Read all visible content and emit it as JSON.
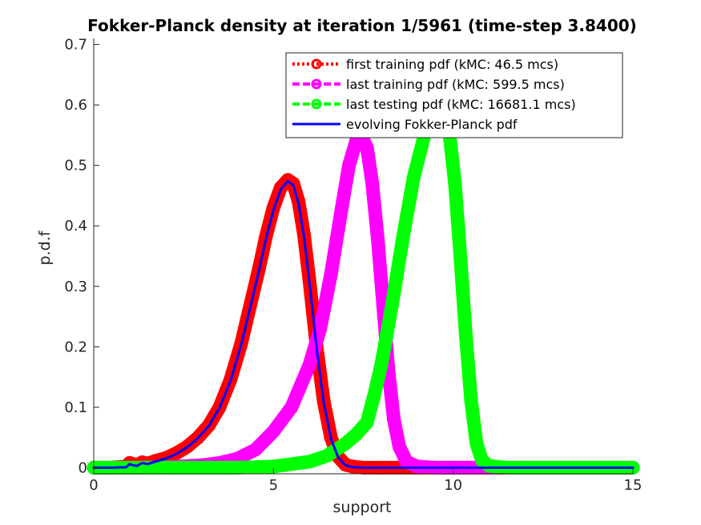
{
  "chart_data": {
    "type": "line",
    "title": "Fokker-Planck density at iteration 1/5961 (time-step 3.8400)",
    "xlabel": "support",
    "ylabel": "p.d.f",
    "xlim": [
      0,
      15
    ],
    "ylim": [
      -0.01,
      0.71
    ],
    "xticks": [
      0,
      5,
      10,
      15
    ],
    "yticks": [
      0,
      0.1,
      0.2,
      0.3,
      0.4,
      0.5,
      0.6,
      0.7
    ],
    "xtick_labels": [
      "0",
      "5",
      "10",
      "15"
    ],
    "ytick_labels": [
      "0",
      "0.1",
      "0.2",
      "0.3",
      "0.4",
      "0.5",
      "0.6",
      "0.7"
    ],
    "grid": false,
    "legend_position": "top-right",
    "series": [
      {
        "name": "first training pdf (kMC: 46.5 mcs)",
        "color": "#ff0000",
        "style": "marker-band",
        "x": [
          0,
          0.5,
          0.9,
          1.0,
          1.1,
          1.2,
          1.35,
          1.5,
          1.7,
          2.0,
          2.3,
          2.6,
          2.9,
          3.2,
          3.5,
          3.8,
          4.1,
          4.4,
          4.6,
          4.8,
          5.0,
          5.2,
          5.4,
          5.55,
          5.7,
          5.85,
          6.0,
          6.2,
          6.4,
          6.6,
          6.8,
          7.0,
          7.2,
          7.5,
          8.0,
          9.0,
          10.0,
          12.0,
          15.0
        ],
        "y": [
          0,
          0,
          0.002,
          0.008,
          0.006,
          0.004,
          0.009,
          0.007,
          0.011,
          0.016,
          0.024,
          0.035,
          0.05,
          0.07,
          0.1,
          0.145,
          0.205,
          0.28,
          0.33,
          0.385,
          0.43,
          0.463,
          0.476,
          0.47,
          0.44,
          0.385,
          0.31,
          0.2,
          0.11,
          0.05,
          0.018,
          0.005,
          0.002,
          0,
          0,
          0,
          0,
          0,
          0
        ]
      },
      {
        "name": "last training pdf (kMC: 599.5 mcs)",
        "color": "#ff00ff",
        "style": "marker-band",
        "x": [
          0,
          1,
          2,
          3,
          3.5,
          4,
          4.5,
          5,
          5.5,
          6,
          6.3,
          6.6,
          6.9,
          7.1,
          7.3,
          7.45,
          7.6,
          7.75,
          7.9,
          8.05,
          8.2,
          8.35,
          8.5,
          8.7,
          9.0,
          9.5,
          10,
          12,
          15
        ],
        "y": [
          0,
          0,
          0.001,
          0.004,
          0.008,
          0.015,
          0.03,
          0.06,
          0.1,
          0.17,
          0.23,
          0.32,
          0.43,
          0.5,
          0.54,
          0.548,
          0.53,
          0.47,
          0.38,
          0.27,
          0.16,
          0.08,
          0.035,
          0.01,
          0.002,
          0,
          0,
          0,
          0
        ]
      },
      {
        "name": "last testing pdf (kMC: 16681.1 mcs)",
        "color": "#00ff00",
        "style": "marker-band",
        "x": [
          0,
          2,
          4,
          5,
          6,
          6.5,
          7,
          7.3,
          7.6,
          7.8,
          8.0,
          8.3,
          8.6,
          8.9,
          9.2,
          9.4,
          9.6,
          9.75,
          9.9,
          10.05,
          10.2,
          10.35,
          10.5,
          10.65,
          10.8,
          11.0,
          11.5,
          13,
          15
        ],
        "y": [
          0,
          0,
          0,
          0.002,
          0.01,
          0.02,
          0.04,
          0.055,
          0.075,
          0.12,
          0.17,
          0.27,
          0.38,
          0.48,
          0.55,
          0.58,
          0.585,
          0.58,
          0.55,
          0.47,
          0.35,
          0.22,
          0.11,
          0.04,
          0.012,
          0.003,
          0,
          0,
          0
        ]
      },
      {
        "name": "evolving Fokker-Planck pdf",
        "color": "#0000ff",
        "style": "line",
        "x": [
          0,
          0.5,
          0.9,
          1.0,
          1.1,
          1.2,
          1.35,
          1.5,
          1.7,
          2.0,
          2.3,
          2.6,
          2.9,
          3.2,
          3.5,
          3.8,
          4.1,
          4.4,
          4.6,
          4.8,
          5.0,
          5.2,
          5.4,
          5.55,
          5.7,
          5.85,
          6.0,
          6.2,
          6.4,
          6.6,
          6.8,
          7.0,
          7.2,
          7.5,
          8.0,
          9.0,
          10.0,
          12.0,
          15.0
        ],
        "y": [
          0,
          0,
          0.001,
          0.006,
          0.004,
          0.003,
          0.008,
          0.006,
          0.01,
          0.015,
          0.023,
          0.034,
          0.049,
          0.069,
          0.099,
          0.143,
          0.203,
          0.277,
          0.327,
          0.381,
          0.426,
          0.46,
          0.474,
          0.467,
          0.437,
          0.382,
          0.307,
          0.198,
          0.108,
          0.048,
          0.017,
          0.004,
          0.001,
          0,
          0,
          0,
          0,
          0,
          0
        ]
      }
    ]
  }
}
